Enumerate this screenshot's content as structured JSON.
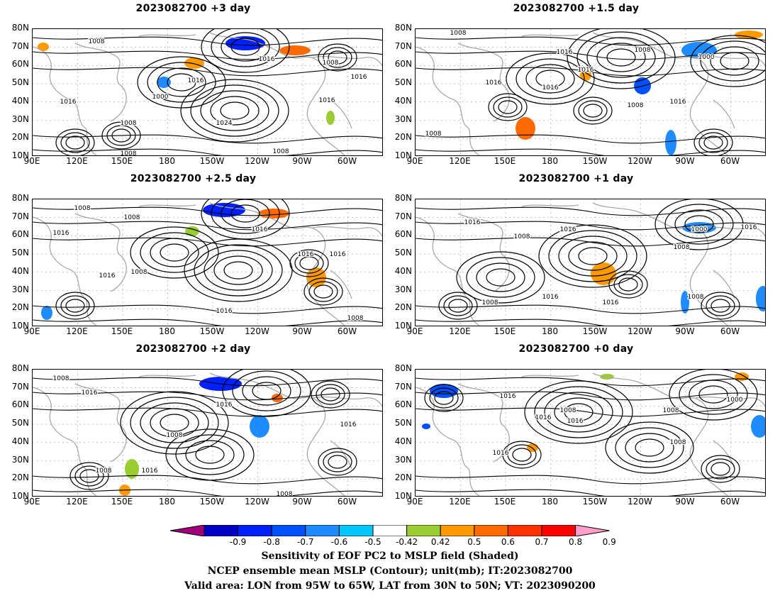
{
  "panels": [
    {
      "title": "2023082700 +3 day",
      "contour_labels": [
        "1008",
        "1016",
        "1000",
        "1016",
        "1016",
        "1008",
        "1016",
        "1008",
        "1024",
        "1016",
        "1008",
        "1008"
      ]
    },
    {
      "title": "2023082700 +1.5 day",
      "contour_labels": [
        "1008",
        "1016",
        "1008",
        "1016",
        "1016",
        "1008",
        "1000",
        "1008",
        "1016",
        "1016"
      ]
    },
    {
      "title": "2023082700 +2.5 day",
      "contour_labels": [
        "1008",
        "1016",
        "1016",
        "1008",
        "1016",
        "1016",
        "1008",
        "1016",
        "1016",
        "1008"
      ]
    },
    {
      "title": "2023082700 +1 day",
      "contour_labels": [
        "1016",
        "1008",
        "1016",
        "1000",
        "1016",
        "1008",
        "1016",
        "1008",
        "1016",
        "1008"
      ]
    },
    {
      "title": "2023082700 +2 day",
      "contour_labels": [
        "1008",
        "1016",
        "1016",
        "1008",
        "1016",
        "1008",
        "1016",
        "1008"
      ]
    },
    {
      "title": "2023082700 +0 day",
      "contour_labels": [
        "1016",
        "1008",
        "1016",
        "1000",
        "1008",
        "1016",
        "1008",
        "1016"
      ]
    }
  ],
  "lat_labels": [
    "80N",
    "70N",
    "60N",
    "50N",
    "40N",
    "30N",
    "20N",
    "10N"
  ],
  "lon_labels": [
    "90E",
    "120E",
    "150E",
    "180",
    "150W",
    "120W",
    "90W",
    "60W"
  ],
  "colorbar": {
    "ticks": [
      "-0.9",
      "-0.8",
      "-0.7",
      "-0.6",
      "-0.5",
      "-0.42",
      "0.42",
      "0.5",
      "0.6",
      "0.7",
      "0.8",
      "0.9"
    ],
    "colors": [
      "#a0007a",
      "#0000c8",
      "#0020ff",
      "#0050ff",
      "#1e8cff",
      "#00c8ff",
      "#ffffff",
      "#9acd32",
      "#ff9900",
      "#ff6a00",
      "#ff3300",
      "#ff0000",
      "#ff9ec8"
    ]
  },
  "captions": [
    "Sensitivity of EOF PC2 to MSLP field (Shaded)",
    "NCEP ensemble mean MSLP (Contour); unit(mb); IT:2023082700",
    "Valid area: LON from 95W to 65W, LAT from 30N to 50N; VT: 2023090200"
  ]
}
